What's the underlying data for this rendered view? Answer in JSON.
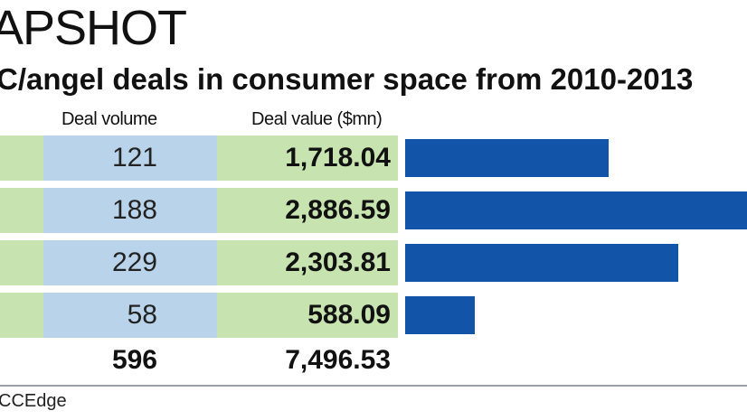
{
  "header": {
    "title": "APSHOT",
    "subtitle": "C/angel deals in consumer space from 2010-2013"
  },
  "columns": {
    "volume": "Deal volume",
    "value": "Deal value ($mn)"
  },
  "colors": {
    "pre_cell": "#c6e3b0",
    "volume_cell": "#b9d3ea",
    "value_cell": "#c6e3b0",
    "bar": "#1255a8"
  },
  "chart_data": {
    "type": "bar",
    "orientation": "horizontal",
    "title": "C/angel deals in consumer space from 2010-2013",
    "categories": [
      "",
      "",
      "",
      ""
    ],
    "series": [
      {
        "name": "Deal volume",
        "values": [
          121,
          188,
          229,
          58
        ]
      },
      {
        "name": "Deal value ($mn)",
        "values": [
          1718.04,
          2886.59,
          2303.81,
          588.09
        ]
      }
    ],
    "bar_series": "Deal value ($mn)",
    "xlim": [
      0,
      2886.59
    ],
    "grid": false,
    "legend": "none",
    "rows": [
      {
        "volume": "121",
        "value": "1,718.04"
      },
      {
        "volume": "188",
        "value": "2,886.59"
      },
      {
        "volume": "229",
        "value": "2,303.81"
      },
      {
        "volume": "58",
        "value": "588.09"
      }
    ],
    "totals": {
      "volume": "596",
      "value": "7,496.53"
    }
  },
  "footer": {
    "source": "CCEdge"
  }
}
